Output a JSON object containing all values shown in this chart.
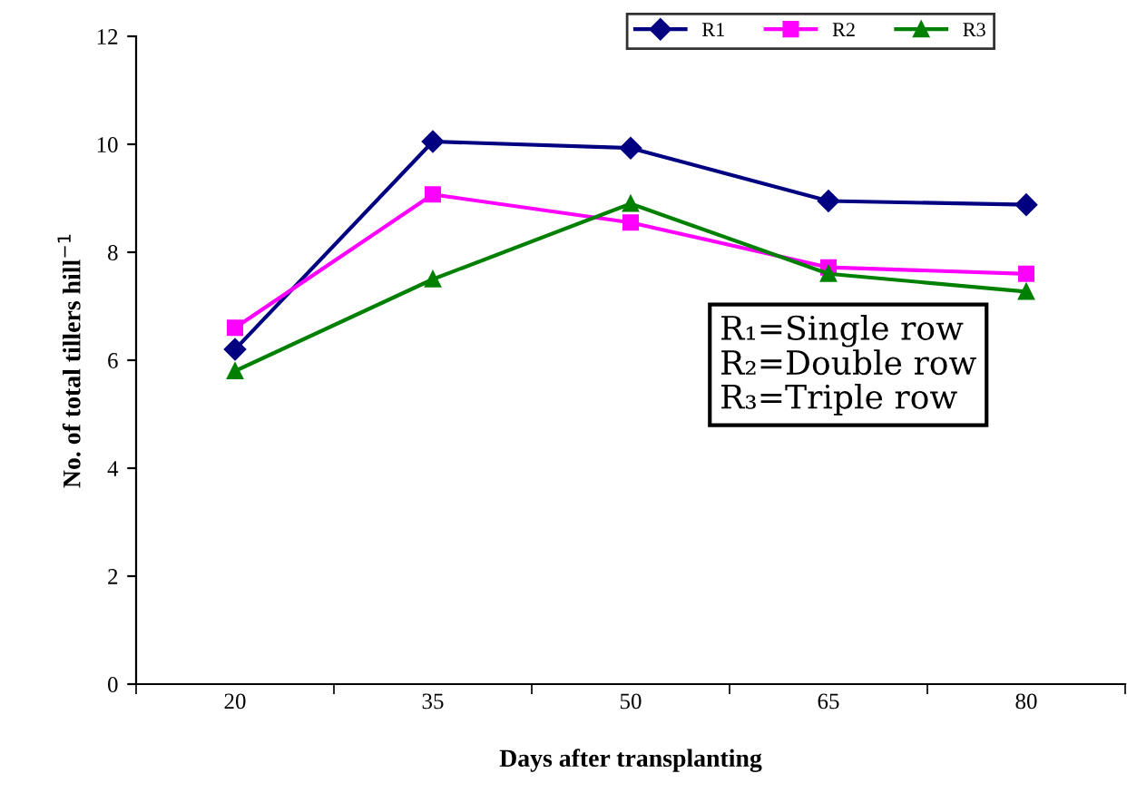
{
  "chart_data": {
    "type": "line",
    "xlabel": "Days after transplanting",
    "ylabel": "No. of total tillers hill$^{−1}$",
    "categories": [
      "20",
      "35",
      "50",
      "65",
      "80"
    ],
    "series": [
      {
        "name": "R1",
        "color": "#000080",
        "marker": "diamond",
        "values": [
          6.2,
          10.05,
          9.93,
          8.95,
          8.88
        ]
      },
      {
        "name": "R2",
        "color": "#ff00ff",
        "marker": "square",
        "values": [
          6.6,
          9.07,
          8.55,
          7.72,
          7.6
        ]
      },
      {
        "name": "R3",
        "color": "#008000",
        "marker": "triangle",
        "values": [
          5.8,
          7.5,
          8.9,
          7.6,
          7.27
        ]
      }
    ],
    "ylim": [
      0,
      12
    ],
    "yticks": [
      0,
      2,
      4,
      6,
      8,
      10,
      12
    ],
    "grid": false,
    "legend": "top right",
    "line_style": "solid",
    "annotations": [
      "R₁=Single row\nR₂=Double row\nR₃=Triple row"
    ]
  }
}
